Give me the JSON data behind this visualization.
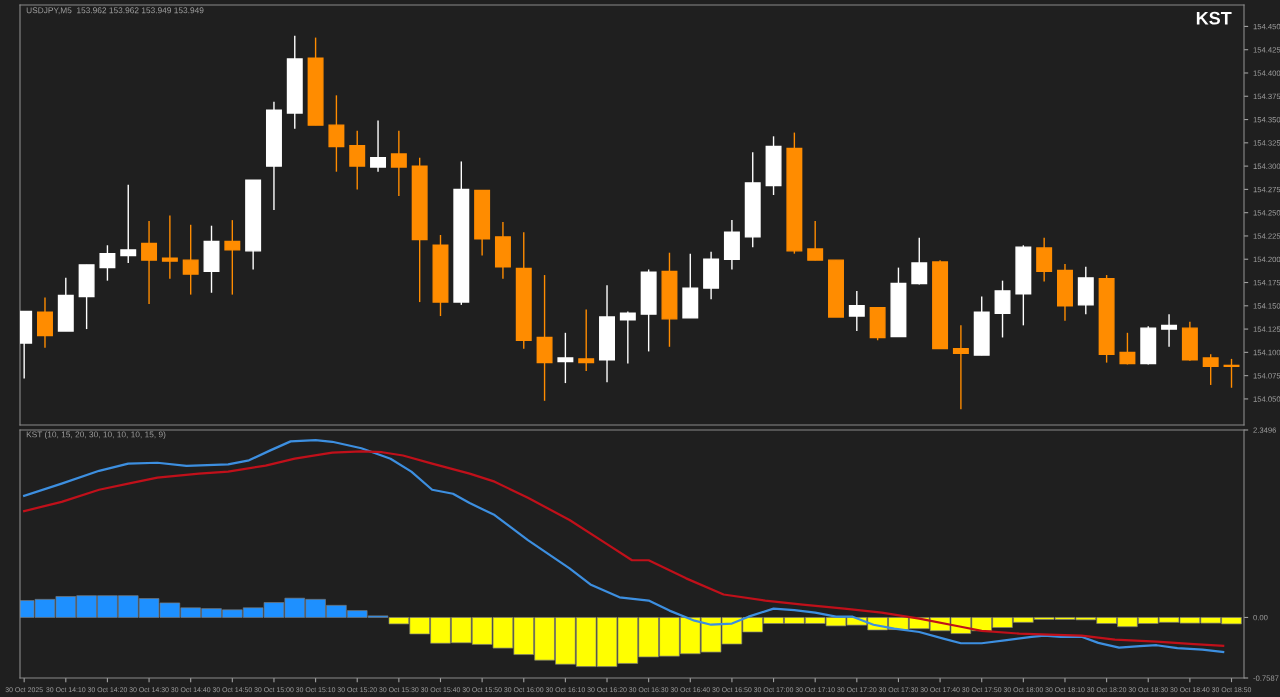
{
  "chart_data": [
    {
      "type": "candlestick",
      "title": "USDJPY,M5  153.962 153.962 153.949 153.949",
      "annotations": [
        "KST"
      ],
      "x": [
        "2025-10-30T14:00",
        "2025-10-30T14:05",
        "2025-10-30T14:10",
        "2025-10-30T14:15",
        "2025-10-30T14:20",
        "2025-10-30T14:25",
        "2025-10-30T14:30",
        "2025-10-30T14:35",
        "2025-10-30T14:40",
        "2025-10-30T14:45",
        "2025-10-30T14:50",
        "2025-10-30T14:55",
        "2025-10-30T15:00",
        "2025-10-30T15:05",
        "2025-10-30T15:10",
        "2025-10-30T15:15",
        "2025-10-30T15:20",
        "2025-10-30T15:25",
        "2025-10-30T15:30",
        "2025-10-30T15:35",
        "2025-10-30T15:40",
        "2025-10-30T15:45",
        "2025-10-30T15:50",
        "2025-10-30T15:55",
        "2025-10-30T16:00",
        "2025-10-30T16:05",
        "2025-10-30T16:10",
        "2025-10-30T16:15",
        "2025-10-30T16:20",
        "2025-10-30T16:25",
        "2025-10-30T16:30",
        "2025-10-30T16:35",
        "2025-10-30T16:40",
        "2025-10-30T16:45",
        "2025-10-30T16:50",
        "2025-10-30T16:55",
        "2025-10-30T17:00",
        "2025-10-30T17:05",
        "2025-10-30T17:10",
        "2025-10-30T17:15",
        "2025-10-30T17:20",
        "2025-10-30T17:25",
        "2025-10-30T17:30",
        "2025-10-30T17:35",
        "2025-10-30T17:40",
        "2025-10-30T17:45",
        "2025-10-30T17:50",
        "2025-10-30T17:55",
        "2025-10-30T18:00",
        "2025-10-30T18:05",
        "2025-10-30T18:10",
        "2025-10-30T18:15",
        "2025-10-30T18:20",
        "2025-10-30T18:25",
        "2025-10-30T18:30",
        "2025-10-30T18:35",
        "2025-10-30T18:40",
        "2025-10-30T18:45",
        "2025-10-30T18:50"
      ],
      "ohlc": [
        [
          154.11,
          154.144,
          154.072,
          154.144
        ],
        [
          154.143,
          154.159,
          154.105,
          154.118
        ],
        [
          154.123,
          154.18,
          154.123,
          154.161
        ],
        [
          154.16,
          154.194,
          154.125,
          154.194
        ],
        [
          154.191,
          154.215,
          154.177,
          154.206
        ],
        [
          154.204,
          154.28,
          154.196,
          154.21
        ],
        [
          154.217,
          154.241,
          154.152,
          154.199
        ],
        [
          154.201,
          154.247,
          154.179,
          154.198
        ],
        [
          154.199,
          154.237,
          154.162,
          154.184
        ],
        [
          154.187,
          154.236,
          154.164,
          154.219
        ],
        [
          154.219,
          154.242,
          154.162,
          154.21
        ],
        [
          154.209,
          154.285,
          154.189,
          154.285
        ],
        [
          154.3,
          154.369,
          154.253,
          154.36
        ],
        [
          154.357,
          154.44,
          154.34,
          154.415
        ],
        [
          154.416,
          154.438,
          154.344,
          154.344
        ],
        [
          154.344,
          154.376,
          154.294,
          154.321
        ],
        [
          154.322,
          154.338,
          154.275,
          154.3
        ],
        [
          154.299,
          154.349,
          154.294,
          154.309
        ],
        [
          154.313,
          154.338,
          154.268,
          154.299
        ],
        [
          154.3,
          154.309,
          154.154,
          154.221
        ],
        [
          154.215,
          154.226,
          154.139,
          154.154
        ],
        [
          154.154,
          154.305,
          154.151,
          154.275
        ],
        [
          154.274,
          154.274,
          154.204,
          154.222
        ],
        [
          154.224,
          154.24,
          154.179,
          154.192
        ],
        [
          154.19,
          154.229,
          154.104,
          154.113
        ],
        [
          154.116,
          154.183,
          154.048,
          154.089
        ],
        [
          154.09,
          154.121,
          154.067,
          154.094
        ],
        [
          154.093,
          154.146,
          154.08,
          154.089
        ],
        [
          154.092,
          154.172,
          154.068,
          154.138
        ],
        [
          154.135,
          154.144,
          154.088,
          154.142
        ],
        [
          154.141,
          154.189,
          154.101,
          154.186
        ],
        [
          154.187,
          154.207,
          154.106,
          154.136
        ],
        [
          154.137,
          154.206,
          154.137,
          154.169
        ],
        [
          154.169,
          154.208,
          154.157,
          154.2
        ],
        [
          154.2,
          154.242,
          154.189,
          154.229
        ],
        [
          154.224,
          154.315,
          154.213,
          154.282
        ],
        [
          154.279,
          154.332,
          154.269,
          154.321
        ],
        [
          154.319,
          154.336,
          154.206,
          154.209
        ],
        [
          154.211,
          154.241,
          154.199,
          154.199
        ],
        [
          154.199,
          154.199,
          154.138,
          154.138
        ],
        [
          154.139,
          154.166,
          154.123,
          154.15
        ],
        [
          154.148,
          154.148,
          154.113,
          154.116
        ],
        [
          154.117,
          154.191,
          154.117,
          154.174
        ],
        [
          154.174,
          154.223,
          154.173,
          154.196
        ],
        [
          154.197,
          154.199,
          154.104,
          154.104
        ],
        [
          154.104,
          154.129,
          154.039,
          154.099
        ],
        [
          154.097,
          154.16,
          154.097,
          154.143
        ],
        [
          154.142,
          154.177,
          154.116,
          154.166
        ],
        [
          154.163,
          154.215,
          154.129,
          154.213
        ],
        [
          154.212,
          154.223,
          154.176,
          154.187
        ],
        [
          154.188,
          154.195,
          154.134,
          154.15
        ],
        [
          154.151,
          154.192,
          154.141,
          154.18
        ],
        [
          154.179,
          154.183,
          154.089,
          154.098
        ],
        [
          154.1,
          154.121,
          154.087,
          154.088
        ],
        [
          154.088,
          154.128,
          154.087,
          154.126
        ],
        [
          154.125,
          154.141,
          154.106,
          154.129
        ],
        [
          154.126,
          154.133,
          154.091,
          154.092
        ],
        [
          154.094,
          154.098,
          154.065,
          154.085
        ],
        [
          154.086,
          154.093,
          154.062,
          154.085
        ]
      ],
      "colors": [
        "#ffffff",
        "#ff8c00",
        "#ffffff",
        "#ffffff",
        "#ffffff",
        "#ffffff",
        "#ff8c00",
        "#ff8c00",
        "#ff8c00",
        "#ffffff",
        "#ff8c00",
        "#ffffff",
        "#ffffff",
        "#ffffff",
        "#ff8c00",
        "#ff8c00",
        "#ff8c00",
        "#ffffff",
        "#ff8c00",
        "#ff8c00",
        "#ff8c00",
        "#ffffff",
        "#ff8c00",
        "#ff8c00",
        "#ff8c00",
        "#ff8c00",
        "#ffffff",
        "#ff8c00",
        "#ffffff",
        "#ffffff",
        "#ffffff",
        "#ff8c00",
        "#ffffff",
        "#ffffff",
        "#ffffff",
        "#ffffff",
        "#ffffff",
        "#ff8c00",
        "#ff8c00",
        "#ff8c00",
        "#ffffff",
        "#ff8c00",
        "#ffffff",
        "#ffffff",
        "#ff8c00",
        "#ff8c00",
        "#ffffff",
        "#ffffff",
        "#ffffff",
        "#ff8c00",
        "#ff8c00",
        "#ffffff",
        "#ff8c00",
        "#ff8c00",
        "#ffffff",
        "#ffffff",
        "#ff8c00",
        "#ff8c00",
        "#ff8c00"
      ],
      "xlim": [
        "2025-10-30T13:59",
        "2025-10-30T18:53"
      ],
      "ylim": [
        154.022,
        154.473
      ],
      "yticks": [
        {
          "value": 154.05,
          "label": "154.050"
        },
        {
          "value": 154.075,
          "label": "154.075"
        },
        {
          "value": 154.1,
          "label": "154.100"
        },
        {
          "value": 154.125,
          "label": "154.125"
        },
        {
          "value": 154.15,
          "label": "154.150"
        },
        {
          "value": 154.175,
          "label": "154.175"
        },
        {
          "value": 154.2,
          "label": "154.200"
        },
        {
          "value": 154.225,
          "label": "154.225"
        },
        {
          "value": 154.25,
          "label": "154.250"
        },
        {
          "value": 154.275,
          "label": "154.275"
        },
        {
          "value": 154.3,
          "label": "154.300"
        },
        {
          "value": 154.325,
          "label": "154.325"
        },
        {
          "value": 154.35,
          "label": "154.350"
        },
        {
          "value": 154.375,
          "label": "154.375"
        },
        {
          "value": 154.4,
          "label": "154.400"
        },
        {
          "value": 154.425,
          "label": "154.425"
        },
        {
          "value": 154.45,
          "label": "154.450"
        }
      ],
      "tick_labels": "y"
    },
    {
      "type": "bar",
      "title": "KST (10, 15, 20, 30, 10, 10, 10, 15, 9)",
      "x": [
        "2025-10-30T14:00",
        "2025-10-30T14:05",
        "2025-10-30T14:10",
        "2025-10-30T14:15",
        "2025-10-30T14:20",
        "2025-10-30T14:25",
        "2025-10-30T14:30",
        "2025-10-30T14:35",
        "2025-10-30T14:40",
        "2025-10-30T14:45",
        "2025-10-30T14:50",
        "2025-10-30T14:55",
        "2025-10-30T15:00",
        "2025-10-30T15:05",
        "2025-10-30T15:10",
        "2025-10-30T15:15",
        "2025-10-30T15:20",
        "2025-10-30T15:25",
        "2025-10-30T15:30",
        "2025-10-30T15:35",
        "2025-10-30T15:40",
        "2025-10-30T15:45",
        "2025-10-30T15:50",
        "2025-10-30T15:55",
        "2025-10-30T16:00",
        "2025-10-30T16:05",
        "2025-10-30T16:10",
        "2025-10-30T16:15",
        "2025-10-30T16:20",
        "2025-10-30T16:25",
        "2025-10-30T16:30",
        "2025-10-30T16:35",
        "2025-10-30T16:40",
        "2025-10-30T16:45",
        "2025-10-30T16:50",
        "2025-10-30T16:55",
        "2025-10-30T17:00",
        "2025-10-30T17:05",
        "2025-10-30T17:10",
        "2025-10-30T17:15",
        "2025-10-30T17:20",
        "2025-10-30T17:25",
        "2025-10-30T17:30",
        "2025-10-30T17:35",
        "2025-10-30T17:40",
        "2025-10-30T17:45",
        "2025-10-30T17:50",
        "2025-10-30T17:55",
        "2025-10-30T18:00",
        "2025-10-30T18:05",
        "2025-10-30T18:10",
        "2025-10-30T18:15",
        "2025-10-30T18:20",
        "2025-10-30T18:25",
        "2025-10-30T18:30",
        "2025-10-30T18:35",
        "2025-10-30T18:40",
        "2025-10-30T18:45",
        "2025-10-30T18:50"
      ],
      "series": [
        {
          "type": "bar",
          "values": [
            0.212,
            0.227,
            0.263,
            0.273,
            0.273,
            0.273,
            0.237,
            0.182,
            0.121,
            0.111,
            0.096,
            0.121,
            0.187,
            0.242,
            0.227,
            0.152,
            0.086,
            0.02,
            -0.081,
            -0.207,
            -0.323,
            -0.318,
            -0.338,
            -0.384,
            -0.465,
            -0.535,
            -0.586,
            -0.616,
            -0.616,
            -0.576,
            -0.495,
            -0.485,
            -0.455,
            -0.434,
            -0.333,
            -0.182,
            -0.076,
            -0.076,
            -0.076,
            -0.106,
            -0.096,
            -0.157,
            -0.152,
            -0.141,
            -0.167,
            -0.202,
            -0.167,
            -0.126,
            -0.061,
            -0.025,
            -0.025,
            -0.03,
            -0.076,
            -0.116,
            -0.076,
            -0.061,
            -0.071,
            -0.071,
            -0.081
          ],
          "colors": [
            "#1e90ff",
            "#1e90ff",
            "#1e90ff",
            "#1e90ff",
            "#1e90ff",
            "#1e90ff",
            "#1e90ff",
            "#1e90ff",
            "#1e90ff",
            "#1e90ff",
            "#1e90ff",
            "#1e90ff",
            "#1e90ff",
            "#1e90ff",
            "#1e90ff",
            "#1e90ff",
            "#1e90ff",
            "#1e90ff",
            "#ffff00",
            "#ffff00",
            "#ffff00",
            "#ffff00",
            "#ffff00",
            "#ffff00",
            "#ffff00",
            "#ffff00",
            "#ffff00",
            "#ffff00",
            "#ffff00",
            "#ffff00",
            "#ffff00",
            "#ffff00",
            "#ffff00",
            "#ffff00",
            "#ffff00",
            "#ffff00",
            "#ffff00",
            "#ffff00",
            "#ffff00",
            "#ffff00",
            "#ffff00",
            "#ffff00",
            "#ffff00",
            "#ffff00",
            "#ffff00",
            "#ffff00",
            "#ffff00",
            "#ffff00",
            "#ffff00",
            "#ffff00",
            "#ffff00",
            "#ffff00",
            "#ffff00",
            "#ffff00",
            "#ffff00",
            "#ffff00",
            "#ffff00",
            "#ffff00",
            "#ffff00"
          ]
        },
        {
          "type": "line",
          "color": "#3d8fe0",
          "x": [
            "2025-10-30T14:00",
            "2025-10-30T14:09",
            "2025-10-30T14:18",
            "2025-10-30T14:25",
            "2025-10-30T14:32",
            "2025-10-30T14:39",
            "2025-10-30T14:49",
            "2025-10-30T14:54",
            "2025-10-30T14:59",
            "2025-10-30T15:04",
            "2025-10-30T15:10",
            "2025-10-30T15:14",
            "2025-10-30T15:21",
            "2025-10-30T15:28",
            "2025-10-30T15:33",
            "2025-10-30T15:38",
            "2025-10-30T15:43",
            "2025-10-30T15:47",
            "2025-10-30T15:53",
            "2025-10-30T16:01",
            "2025-10-30T16:11",
            "2025-10-30T16:16",
            "2025-10-30T16:23",
            "2025-10-30T16:30",
            "2025-10-30T16:35",
            "2025-10-30T16:41",
            "2025-10-30T16:45",
            "2025-10-30T16:50",
            "2025-10-30T16:54",
            "2025-10-30T17:00",
            "2025-10-30T17:05",
            "2025-10-30T17:10",
            "2025-10-30T17:15",
            "2025-10-30T17:19",
            "2025-10-30T17:24",
            "2025-10-30T17:29",
            "2025-10-30T17:35",
            "2025-10-30T17:41",
            "2025-10-30T17:45",
            "2025-10-30T17:50",
            "2025-10-30T17:56",
            "2025-10-30T18:02",
            "2025-10-30T18:05",
            "2025-10-30T18:09",
            "2025-10-30T18:14",
            "2025-10-30T18:18",
            "2025-10-30T18:23",
            "2025-10-30T18:28",
            "2025-10-30T18:32",
            "2025-10-30T18:37",
            "2025-10-30T18:43",
            "2025-10-30T18:48"
          ],
          "values": [
            1.525,
            1.677,
            1.838,
            1.929,
            1.939,
            1.899,
            1.919,
            1.97,
            2.091,
            2.207,
            2.222,
            2.202,
            2.121,
            1.99,
            1.828,
            1.601,
            1.551,
            1.434,
            1.283,
            0.97,
            0.616,
            0.414,
            0.253,
            0.212,
            0.086,
            -0.04,
            -0.091,
            -0.076,
            0.01,
            0.111,
            0.091,
            0.061,
            0.01,
            0.01,
            -0.091,
            -0.141,
            -0.182,
            -0.268,
            -0.323,
            -0.323,
            -0.283,
            -0.242,
            -0.227,
            -0.242,
            -0.242,
            -0.318,
            -0.379,
            -0.359,
            -0.348,
            -0.384,
            -0.404,
            -0.434
          ]
        },
        {
          "type": "line",
          "color": "#c0101a",
          "x": [
            "2025-10-30T14:00",
            "2025-10-30T14:09",
            "2025-10-30T14:18",
            "2025-10-30T14:25",
            "2025-10-30T14:32",
            "2025-10-30T14:42",
            "2025-10-30T14:49",
            "2025-10-30T14:58",
            "2025-10-30T15:05",
            "2025-10-30T15:14",
            "2025-10-30T15:21",
            "2025-10-30T15:26",
            "2025-10-30T15:31",
            "2025-10-30T15:38",
            "2025-10-30T15:47",
            "2025-10-30T15:53",
            "2025-10-30T16:01",
            "2025-10-30T16:11",
            "2025-10-30T16:20",
            "2025-10-30T16:26",
            "2025-10-30T16:30",
            "2025-10-30T16:39",
            "2025-10-30T16:48",
            "2025-10-30T16:58",
            "2025-10-30T17:07",
            "2025-10-30T17:17",
            "2025-10-30T17:26",
            "2025-10-30T17:35",
            "2025-10-30T17:45",
            "2025-10-30T17:50",
            "2025-10-30T17:59",
            "2025-10-30T18:08",
            "2025-10-30T18:14",
            "2025-10-30T18:22",
            "2025-10-30T18:32",
            "2025-10-30T18:41",
            "2025-10-30T18:48"
          ],
          "values": [
            1.333,
            1.449,
            1.601,
            1.677,
            1.753,
            1.803,
            1.828,
            1.904,
            1.99,
            2.066,
            2.081,
            2.071,
            2.03,
            1.929,
            1.803,
            1.702,
            1.5,
            1.222,
            0.919,
            0.717,
            0.717,
            0.49,
            0.288,
            0.212,
            0.162,
            0.111,
            0.061,
            -0.015,
            -0.116,
            -0.167,
            -0.202,
            -0.217,
            -0.227,
            -0.278,
            -0.303,
            -0.333,
            -0.354
          ]
        }
      ],
      "xlim": [
        "2025-10-30T13:59",
        "2025-10-30T18:53"
      ],
      "ylim": [
        -0.7587,
        2.3496
      ],
      "yticks": [
        2.3496,
        {
          "value": 0,
          "label": "0.00"
        },
        -0.7587
      ],
      "xticks": [
        {
          "value": "2025-10-30T14:00",
          "label": "30 Oct 2025"
        },
        {
          "value": "2025-10-30T14:10",
          "label": "30 Oct 14:10"
        },
        {
          "value": "2025-10-30T14:20",
          "label": "30 Oct 14:20"
        },
        {
          "value": "2025-10-30T14:30",
          "label": "30 Oct 14:30"
        },
        {
          "value": "2025-10-30T14:40",
          "label": "30 Oct 14:40"
        },
        {
          "value": "2025-10-30T14:50",
          "label": "30 Oct 14:50"
        },
        {
          "value": "2025-10-30T15:00",
          "label": "30 Oct 15:00"
        },
        {
          "value": "2025-10-30T15:10",
          "label": "30 Oct 15:10"
        },
        {
          "value": "2025-10-30T15:20",
          "label": "30 Oct 15:20"
        },
        {
          "value": "2025-10-30T15:30",
          "label": "30 Oct 15:30"
        },
        {
          "value": "2025-10-30T15:40",
          "label": "30 Oct 15:40"
        },
        {
          "value": "2025-10-30T15:50",
          "label": "30 Oct 15:50"
        },
        {
          "value": "2025-10-30T16:00",
          "label": "30 Oct 16:00"
        },
        {
          "value": "2025-10-30T16:10",
          "label": "30 Oct 16:10"
        },
        {
          "value": "2025-10-30T16:20",
          "label": "30 Oct 16:20"
        },
        {
          "value": "2025-10-30T16:30",
          "label": "30 Oct 16:30"
        },
        {
          "value": "2025-10-30T16:40",
          "label": "30 Oct 16:40"
        },
        {
          "value": "2025-10-30T16:50",
          "label": "30 Oct 16:50"
        },
        {
          "value": "2025-10-30T17:00",
          "label": "30 Oct 17:00"
        },
        {
          "value": "2025-10-30T17:10",
          "label": "30 Oct 17:10"
        },
        {
          "value": "2025-10-30T17:20",
          "label": "30 Oct 17:20"
        },
        {
          "value": "2025-10-30T17:30",
          "label": "30 Oct 17:30"
        },
        {
          "value": "2025-10-30T17:40",
          "label": "30 Oct 17:40"
        },
        {
          "value": "2025-10-30T17:50",
          "label": "30 Oct 17:50"
        },
        {
          "value": "2025-10-30T18:00",
          "label": "30 Oct 18:00"
        },
        {
          "value": "2025-10-30T18:10",
          "label": "30 Oct 18:10"
        },
        {
          "value": "2025-10-30T18:20",
          "label": "30 Oct 18:20"
        },
        {
          "value": "2025-10-30T18:30",
          "label": "30 Oct 18:30"
        },
        {
          "value": "2025-10-30T18:40",
          "label": "30 Oct 18:40"
        },
        {
          "value": "2025-10-30T18:50",
          "label": "30 Oct 18:50"
        }
      ]
    }
  ]
}
